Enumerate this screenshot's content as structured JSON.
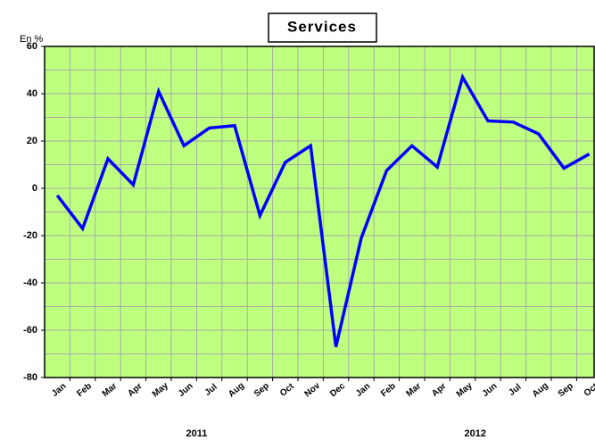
{
  "chart_data": {
    "type": "line",
    "title": "Services",
    "y_unit": "En %",
    "categories": [
      "Jan",
      "Feb",
      "Mar",
      "Apr",
      "May",
      "Jun",
      "Jul",
      "Aug",
      "Sep",
      "Oct",
      "Nov",
      "Dec",
      "Jan",
      "Feb",
      "Mar",
      "Apr",
      "May",
      "Jun",
      "Jul",
      "Aug",
      "Sep",
      "Oct"
    ],
    "year_labels": [
      "2011",
      "2012"
    ],
    "series": [
      {
        "name": "Services",
        "color": "#0000ff",
        "values": [
          -3,
          -17,
          12.5,
          1.5,
          41,
          18,
          25.5,
          26.5,
          -11.5,
          11,
          18,
          -67,
          -21,
          7.5,
          18,
          9,
          47,
          28.5,
          28,
          23,
          8.5,
          14.5
        ]
      }
    ],
    "ylim": [
      -80,
      60
    ],
    "yticks": [
      -80,
      -60,
      -40,
      -20,
      0,
      20,
      40,
      60
    ],
    "grid": true,
    "background": "#bfff80"
  }
}
